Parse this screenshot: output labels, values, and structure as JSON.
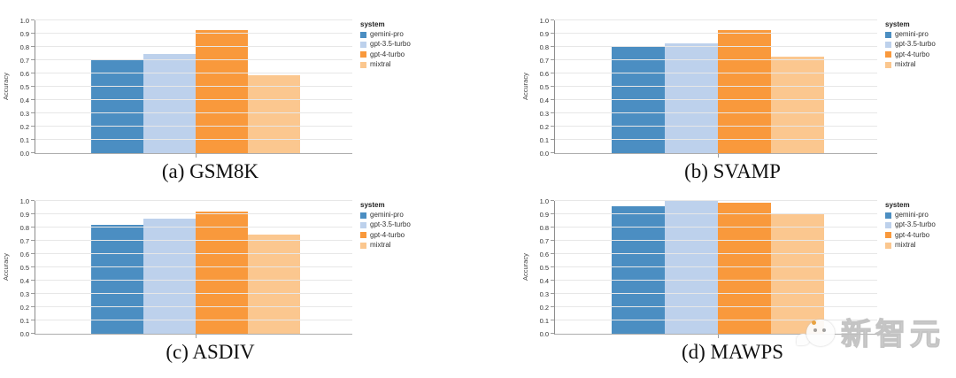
{
  "figure": {
    "background": "#ffffff",
    "grid_color": "#e7e7e7",
    "axis_color": "#8c8c8c"
  },
  "legend": {
    "title": "system",
    "position": "right",
    "items": [
      {
        "label": "gemini-pro",
        "color": "#4b8ec2"
      },
      {
        "label": "gpt-3.5-turbo",
        "color": "#bdd1ec"
      },
      {
        "label": "gpt-4-turbo",
        "color": "#f9993c"
      },
      {
        "label": "mixtral",
        "color": "#fbc78f"
      }
    ]
  },
  "chart_data": [
    {
      "id": "gsm8k",
      "type": "bar",
      "caption": "(a) GSM8K",
      "ylabel": "Accuracy",
      "ylim": [
        0,
        1
      ],
      "ytick_step": 0.1,
      "grid": true,
      "legend_title": "system",
      "legend_position": "right",
      "categories": [
        "gemini-pro",
        "gpt-3.5-turbo",
        "gpt-4-turbo",
        "mixtral"
      ],
      "values": [
        0.7,
        0.75,
        0.93,
        0.59
      ]
    },
    {
      "id": "svamp",
      "type": "bar",
      "caption": "(b) SVAMP",
      "ylabel": "Accuracy",
      "ylim": [
        0,
        1
      ],
      "ytick_step": 0.1,
      "grid": true,
      "legend_title": "system",
      "legend_position": "right",
      "categories": [
        "gemini-pro",
        "gpt-3.5-turbo",
        "gpt-4-turbo",
        "mixtral"
      ],
      "values": [
        0.8,
        0.83,
        0.93,
        0.73
      ]
    },
    {
      "id": "asdiv",
      "type": "bar",
      "caption": "(c) ASDIV",
      "ylabel": "Accuracy",
      "ylim": [
        0,
        1
      ],
      "ytick_step": 0.1,
      "grid": true,
      "legend_title": "system",
      "legend_position": "right",
      "categories": [
        "gemini-pro",
        "gpt-3.5-turbo",
        "gpt-4-turbo",
        "mixtral"
      ],
      "values": [
        0.82,
        0.87,
        0.92,
        0.75
      ]
    },
    {
      "id": "mawps",
      "type": "bar",
      "caption": "(d) MAWPS",
      "ylabel": "Accuracy",
      "ylim": [
        0,
        1
      ],
      "ytick_step": 0.1,
      "grid": true,
      "legend_title": "system",
      "legend_position": "right",
      "categories": [
        "gemini-pro",
        "gpt-3.5-turbo",
        "gpt-4-turbo",
        "mixtral"
      ],
      "values": [
        0.96,
        1.0,
        0.99,
        0.9
      ]
    }
  ],
  "watermark": {
    "text": "新智元",
    "logo": "chat-bubble-mascot"
  }
}
